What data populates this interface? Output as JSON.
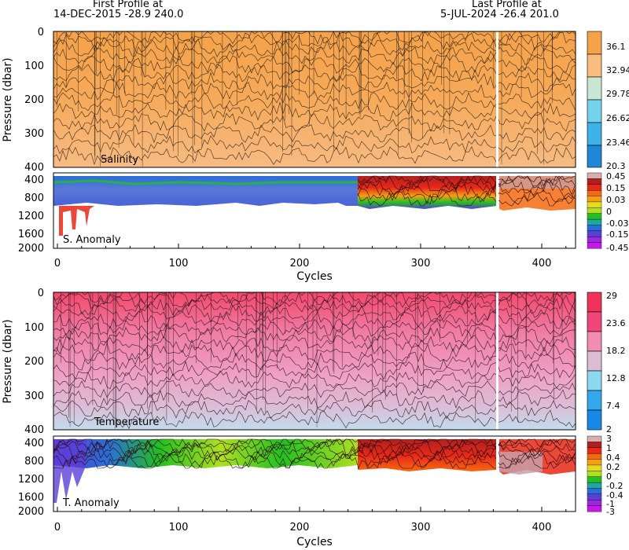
{
  "header": {
    "first_label": "First Profile at",
    "first_value": "14-DEC-2015   -28.9 240.0",
    "last_label": "Last Profile at",
    "last_value": "5-JUL-2024   -26.4 201.0"
  },
  "chart_data": [
    {
      "type": "heatmap",
      "title": "Salinity",
      "ylabel": "Pressure (dbar)",
      "yticks": [
        "0",
        "100",
        "200",
        "300",
        "400"
      ],
      "ylim": [
        0,
        400
      ],
      "xlim": [
        0,
        432
      ],
      "colorbar": {
        "labels": [
          "36.1",
          "32.94",
          "29.78",
          "26.62",
          "23.46",
          "20.3"
        ],
        "colors": [
          "#f5a24a",
          "#f8bd7e",
          "#c8e6d2",
          "#74d2ec",
          "#3cb2e8",
          "#1f86d8"
        ]
      }
    },
    {
      "type": "heatmap",
      "title": "S. Anomaly",
      "yticks": [
        "400",
        "800",
        "1200",
        "1600",
        "2000"
      ],
      "ylim": [
        400,
        2000
      ],
      "xlabel": "Cycles",
      "xticks": [
        "0",
        "100",
        "200",
        "300",
        "400"
      ],
      "xlim": [
        0,
        432
      ],
      "colorbar": {
        "labels": [
          "0.45",
          "0.15",
          "0.03",
          "0",
          "-0.03",
          "-0.15",
          "-0.45"
        ],
        "colors": [
          "#d9aeb0",
          "#b02020",
          "#e82818",
          "#f56a10",
          "#f5a010",
          "#e8d820",
          "#aee020",
          "#22c020",
          "#1fa8a0",
          "#2a6ed8",
          "#5a3ed8",
          "#9a28e0",
          "#c818e8"
        ]
      }
    },
    {
      "type": "heatmap",
      "title": "Temperature",
      "ylabel": "Pressure (dbar)",
      "yticks": [
        "0",
        "100",
        "200",
        "300",
        "400"
      ],
      "ylim": [
        0,
        400
      ],
      "xlim": [
        0,
        432
      ],
      "colorbar": {
        "labels": [
          "29",
          "23.6",
          "18.2",
          "12.8",
          "7.4",
          "2"
        ],
        "colors": [
          "#f0325a",
          "#f0467a",
          "#f28cb2",
          "#dcbed4",
          "#8ed8f0",
          "#34a8ec",
          "#1888e8"
        ]
      }
    },
    {
      "type": "heatmap",
      "title": "T. Anomaly",
      "yticks": [
        "400",
        "800",
        "1200",
        "1600",
        "2000"
      ],
      "ylim": [
        400,
        2000
      ],
      "xlabel": "Cycles",
      "xticks": [
        "0",
        "100",
        "200",
        "300",
        "400"
      ],
      "xlim": [
        0,
        432
      ],
      "colorbar": {
        "labels": [
          "3",
          "1",
          "0.4",
          "0.2",
          "0",
          "-0.2",
          "-0.4",
          "-1",
          "-3"
        ],
        "colors": [
          "#d9aeb0",
          "#b02020",
          "#e82818",
          "#f56a10",
          "#f5a010",
          "#e8d820",
          "#aee020",
          "#22c020",
          "#1fa8a0",
          "#2a6ed8",
          "#5a3ed8",
          "#9a28e0",
          "#c818e8"
        ]
      }
    }
  ]
}
